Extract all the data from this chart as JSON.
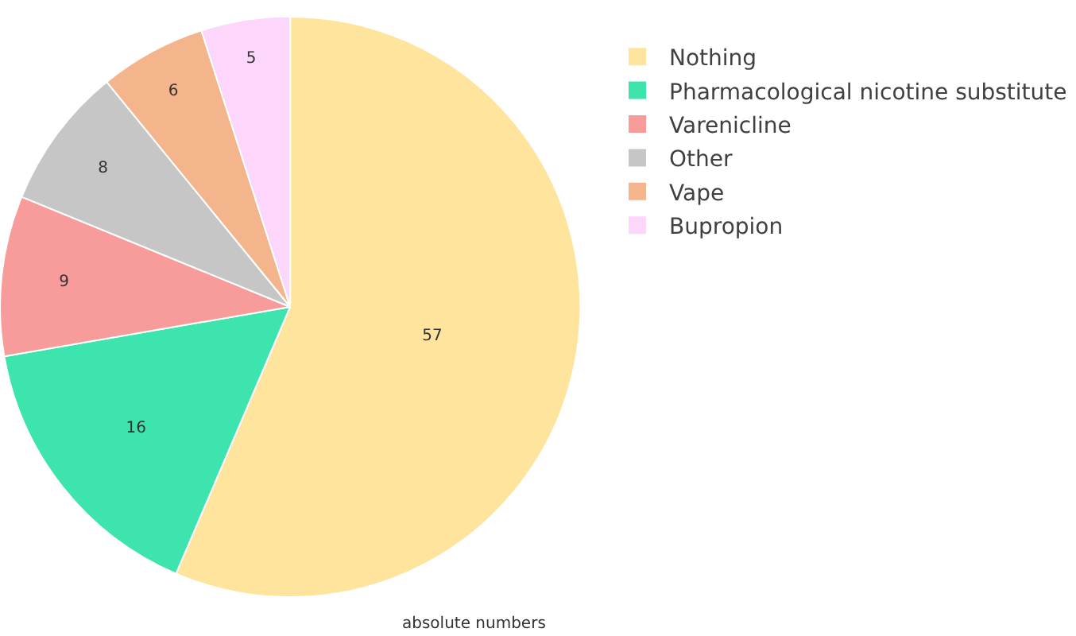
{
  "chart_data": {
    "type": "pie",
    "categories": [
      "Nothing",
      "Pharmacological nicotine substitute",
      "Varenicline",
      "Other",
      "Vape",
      "Bupropion"
    ],
    "values": [
      57,
      16,
      9,
      8,
      6,
      5
    ],
    "colors": [
      "#fee49c",
      "#3ee4ad",
      "#f89b9b",
      "#c6c6c6",
      "#f5b58c",
      "#fcd6fb"
    ],
    "data_labels": true,
    "legend": "right",
    "annotations": [
      "absolute numbers"
    ]
  }
}
